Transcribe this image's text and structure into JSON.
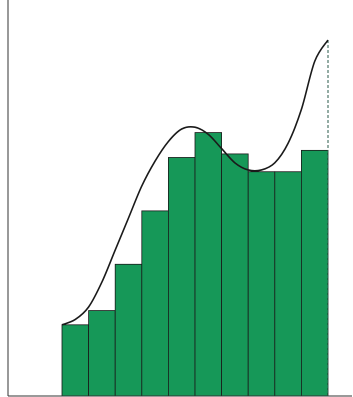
{
  "chart_data": {
    "type": "bar",
    "description_free": true,
    "bar_color": "#169858",
    "curve_color": "#1a1a1a",
    "axis_color": "#333333",
    "grid": false,
    "xlim": [
      0,
      10
    ],
    "ylim": [
      0,
      10
    ],
    "bars": {
      "x_left": [
        0,
        1,
        2,
        3,
        4,
        5,
        6,
        7,
        8,
        9
      ],
      "width": 1,
      "heights": [
        2.0,
        2.4,
        3.7,
        5.2,
        6.7,
        7.4,
        6.8,
        6.3,
        6.3,
        6.9
      ]
    },
    "curve": {
      "x": [
        0,
        0.5,
        1,
        1.5,
        2,
        2.5,
        3,
        3.5,
        4,
        4.5,
        5,
        5.5,
        6,
        6.5,
        7,
        7.5,
        8,
        8.5,
        9,
        9.5,
        10
      ],
      "y": [
        2.0,
        2.15,
        2.5,
        3.2,
        4.1,
        5.0,
        5.9,
        6.6,
        7.15,
        7.5,
        7.55,
        7.35,
        6.95,
        6.55,
        6.35,
        6.35,
        6.55,
        7.1,
        8.05,
        9.4,
        10.0
      ]
    },
    "end_marker_x": 10
  }
}
